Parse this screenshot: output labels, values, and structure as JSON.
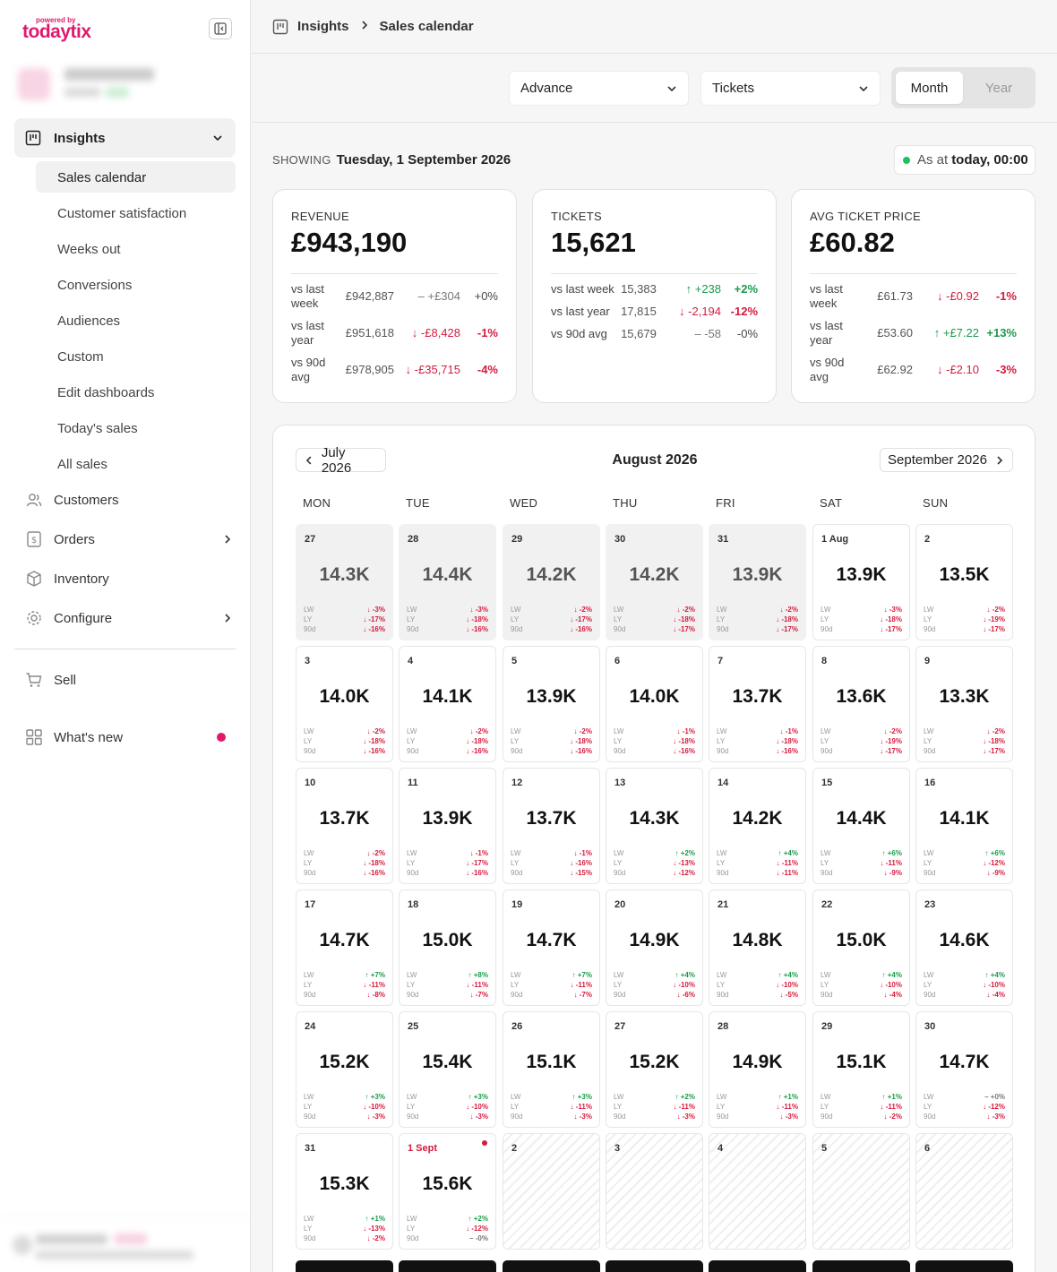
{
  "brand": {
    "powered_by": "powered by",
    "logo": "todaytix"
  },
  "sidebar": {
    "group": {
      "label": "Insights"
    },
    "sub_items": [
      "Sales calendar",
      "Customer satisfaction",
      "Weeks out",
      "Conversions",
      "Audiences",
      "Custom",
      "Edit dashboards",
      "Today's sales",
      "All sales"
    ],
    "main_items": [
      {
        "label": "Customers",
        "icon": "users-icon"
      },
      {
        "label": "Orders",
        "icon": "dollar-doc-icon"
      },
      {
        "label": "Inventory",
        "icon": "box-icon"
      },
      {
        "label": "Configure",
        "icon": "gear-icon"
      }
    ],
    "sell": "Sell",
    "whats_new": "What's new"
  },
  "breadcrumb": {
    "section": "Insights",
    "page": "Sales calendar"
  },
  "filters": {
    "mode": "Advance",
    "metric": "Tickets",
    "period_on": "Month",
    "period_off": "Year"
  },
  "showing": {
    "label": "SHOWING",
    "date": "Tuesday, 1 September 2026"
  },
  "as_at": {
    "label": "As at",
    "value": "today, 00:00"
  },
  "kpis": [
    {
      "title": "REVENUE",
      "value": "£943,190",
      "rows": [
        {
          "label": "vs last week",
          "base": "£942,887",
          "delta": "+£304",
          "pct": "+0%",
          "dir": "ne"
        },
        {
          "label": "vs last year",
          "base": "£951,618",
          "delta": "-£8,428",
          "pct": "-1%",
          "dir": "dn"
        },
        {
          "label": "vs 90d avg",
          "base": "£978,905",
          "delta": "-£35,715",
          "pct": "-4%",
          "dir": "dn"
        }
      ]
    },
    {
      "title": "TICKETS",
      "value": "15,621",
      "rows": [
        {
          "label": "vs last week",
          "base": "15,383",
          "delta": "+238",
          "pct": "+2%",
          "dir": "up"
        },
        {
          "label": "vs last year",
          "base": "17,815",
          "delta": "-2,194",
          "pct": "-12%",
          "dir": "dn"
        },
        {
          "label": "vs 90d avg",
          "base": "15,679",
          "delta": "-58",
          "pct": "-0%",
          "dir": "ne"
        }
      ]
    },
    {
      "title": "AVG TICKET PRICE",
      "value": "£60.82",
      "rows": [
        {
          "label": "vs last week",
          "base": "£61.73",
          "delta": "-£0.92",
          "pct": "-1%",
          "dir": "dn"
        },
        {
          "label": "vs last year",
          "base": "£53.60",
          "delta": "+£7.22",
          "pct": "+13%",
          "dir": "up"
        },
        {
          "label": "vs 90d avg",
          "base": "£62.92",
          "delta": "-£2.10",
          "pct": "-3%",
          "dir": "dn"
        }
      ]
    }
  ],
  "calendar": {
    "prev": "July 2026",
    "title": "August 2026",
    "next": "September 2026",
    "weekdays": [
      "MON",
      "TUE",
      "WED",
      "THU",
      "FRI",
      "SAT",
      "SUN"
    ],
    "metric_labels": [
      "LW",
      "LY",
      "90d"
    ],
    "days": [
      {
        "d": "27",
        "v": "14.3K",
        "m": [
          "-3%",
          "-17%",
          "-16%"
        ],
        "s": "past"
      },
      {
        "d": "28",
        "v": "14.4K",
        "m": [
          "-3%",
          "-18%",
          "-16%"
        ],
        "s": "past"
      },
      {
        "d": "29",
        "v": "14.2K",
        "m": [
          "-2%",
          "-17%",
          "-16%"
        ],
        "s": "past"
      },
      {
        "d": "30",
        "v": "14.2K",
        "m": [
          "-2%",
          "-18%",
          "-17%"
        ],
        "s": "past"
      },
      {
        "d": "31",
        "v": "13.9K",
        "m": [
          "-2%",
          "-18%",
          "-17%"
        ],
        "s": "past"
      },
      {
        "d": "1 Aug",
        "v": "13.9K",
        "m": [
          "-3%",
          "-18%",
          "-17%"
        ]
      },
      {
        "d": "2",
        "v": "13.5K",
        "m": [
          "-2%",
          "-19%",
          "-17%"
        ]
      },
      {
        "d": "3",
        "v": "14.0K",
        "m": [
          "-2%",
          "-18%",
          "-16%"
        ]
      },
      {
        "d": "4",
        "v": "14.1K",
        "m": [
          "-2%",
          "-18%",
          "-16%"
        ]
      },
      {
        "d": "5",
        "v": "13.9K",
        "m": [
          "-2%",
          "-18%",
          "-16%"
        ]
      },
      {
        "d": "6",
        "v": "14.0K",
        "m": [
          "-1%",
          "-18%",
          "-16%"
        ]
      },
      {
        "d": "7",
        "v": "13.7K",
        "m": [
          "-1%",
          "-18%",
          "-16%"
        ]
      },
      {
        "d": "8",
        "v": "13.6K",
        "m": [
          "-2%",
          "-19%",
          "-17%"
        ]
      },
      {
        "d": "9",
        "v": "13.3K",
        "m": [
          "-2%",
          "-18%",
          "-17%"
        ]
      },
      {
        "d": "10",
        "v": "13.7K",
        "m": [
          "-2%",
          "-18%",
          "-16%"
        ]
      },
      {
        "d": "11",
        "v": "13.9K",
        "m": [
          "-1%",
          "-17%",
          "-16%"
        ]
      },
      {
        "d": "12",
        "v": "13.7K",
        "m": [
          "-1%",
          "-16%",
          "-15%"
        ]
      },
      {
        "d": "13",
        "v": "14.3K",
        "m": [
          "+2%",
          "-13%",
          "-12%"
        ]
      },
      {
        "d": "14",
        "v": "14.2K",
        "m": [
          "+4%",
          "-11%",
          "-11%"
        ]
      },
      {
        "d": "15",
        "v": "14.4K",
        "m": [
          "+6%",
          "-11%",
          "-9%"
        ]
      },
      {
        "d": "16",
        "v": "14.1K",
        "m": [
          "+6%",
          "-12%",
          "-9%"
        ]
      },
      {
        "d": "17",
        "v": "14.7K",
        "m": [
          "+7%",
          "-11%",
          "-8%"
        ]
      },
      {
        "d": "18",
        "v": "15.0K",
        "m": [
          "+8%",
          "-11%",
          "-7%"
        ]
      },
      {
        "d": "19",
        "v": "14.7K",
        "m": [
          "+7%",
          "-11%",
          "-7%"
        ]
      },
      {
        "d": "20",
        "v": "14.9K",
        "m": [
          "+4%",
          "-10%",
          "-6%"
        ]
      },
      {
        "d": "21",
        "v": "14.8K",
        "m": [
          "+4%",
          "-10%",
          "-5%"
        ]
      },
      {
        "d": "22",
        "v": "15.0K",
        "m": [
          "+4%",
          "-10%",
          "-4%"
        ]
      },
      {
        "d": "23",
        "v": "14.6K",
        "m": [
          "+4%",
          "-10%",
          "-4%"
        ]
      },
      {
        "d": "24",
        "v": "15.2K",
        "m": [
          "+3%",
          "-10%",
          "-3%"
        ]
      },
      {
        "d": "25",
        "v": "15.4K",
        "m": [
          "+3%",
          "-10%",
          "-3%"
        ]
      },
      {
        "d": "26",
        "v": "15.1K",
        "m": [
          "+3%",
          "-11%",
          "-3%"
        ]
      },
      {
        "d": "27",
        "v": "15.2K",
        "m": [
          "+2%",
          "-11%",
          "-3%"
        ]
      },
      {
        "d": "28",
        "v": "14.9K",
        "m": [
          "+1%",
          "-11%",
          "-3%"
        ]
      },
      {
        "d": "29",
        "v": "15.1K",
        "m": [
          "+1%",
          "-11%",
          "-2%"
        ]
      },
      {
        "d": "30",
        "v": "14.7K",
        "m": [
          "+0%",
          "-12%",
          "-3%"
        ]
      },
      {
        "d": "31",
        "v": "15.3K",
        "m": [
          "+1%",
          "-13%",
          "-2%"
        ]
      },
      {
        "d": "1 Sept",
        "v": "15.6K",
        "m": [
          "+2%",
          "-12%",
          "-0%"
        ],
        "s": "today"
      },
      {
        "d": "2",
        "s": "future"
      },
      {
        "d": "3",
        "s": "future"
      },
      {
        "d": "4",
        "s": "future"
      },
      {
        "d": "5",
        "s": "future"
      },
      {
        "d": "6",
        "s": "future"
      }
    ]
  }
}
